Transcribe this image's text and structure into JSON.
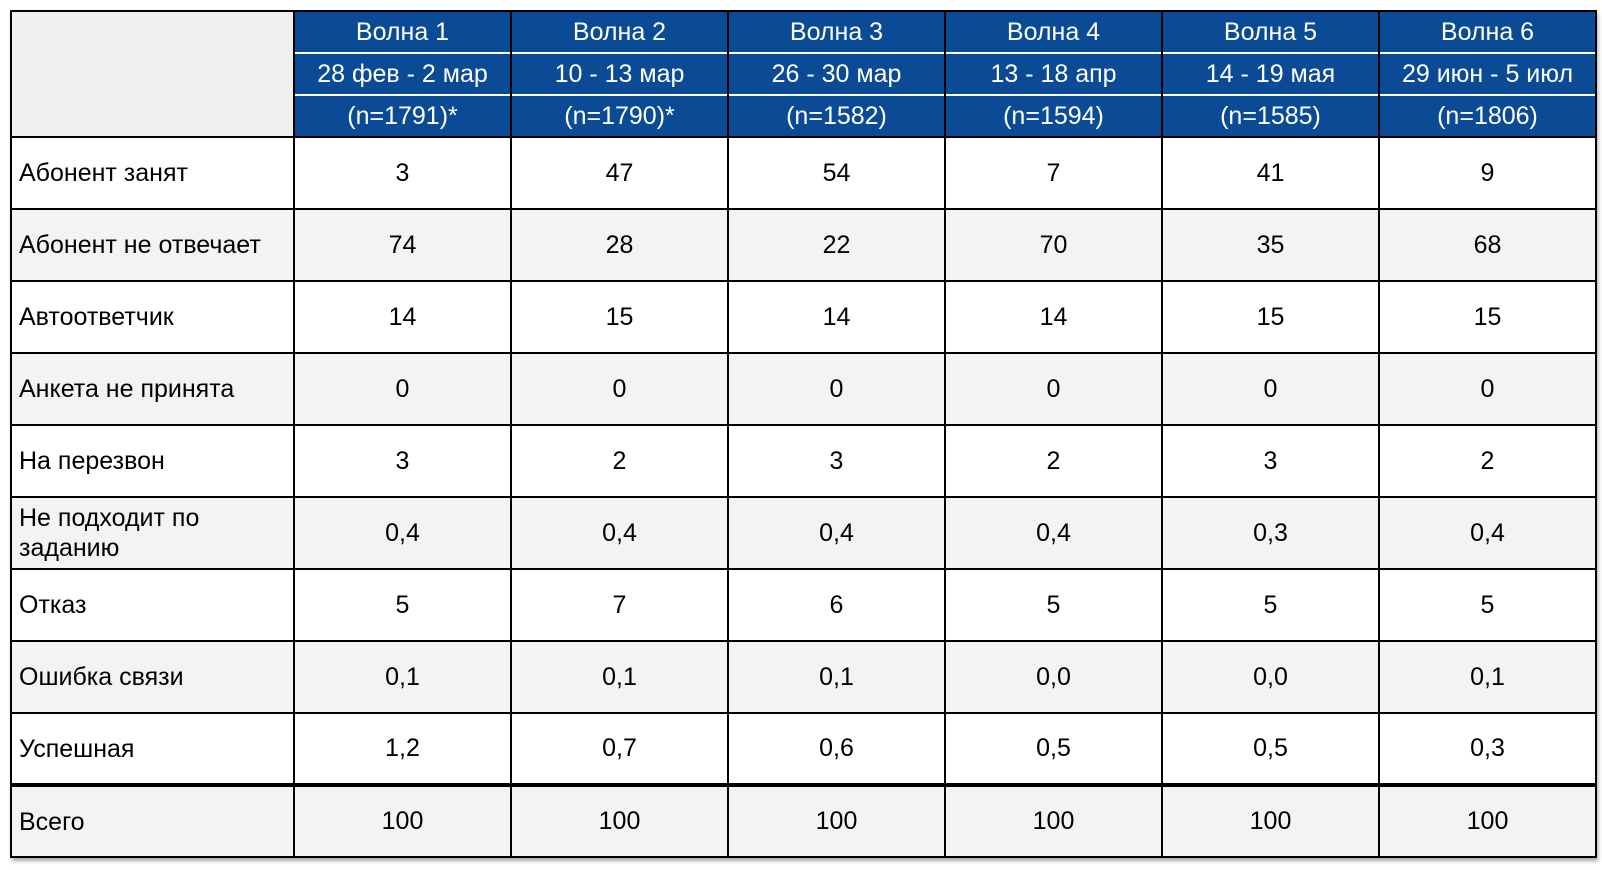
{
  "table": {
    "columns": [
      {
        "wave": "Волна 1",
        "dates": "28 фев - 2 мар",
        "n": "(n=1791)*"
      },
      {
        "wave": "Волна 2",
        "dates": "10 - 13 мар",
        "n": "(n=1790)*"
      },
      {
        "wave": "Волна 3",
        "dates": "26 - 30 мар",
        "n": "(n=1582)"
      },
      {
        "wave": "Волна 4",
        "dates": "13 - 18 апр",
        "n": "(n=1594)"
      },
      {
        "wave": "Волна 5",
        "dates": "14 - 19 мая",
        "n": "(n=1585)"
      },
      {
        "wave": "Волна 6",
        "dates": "29 июн - 5 июл",
        "n": "(n=1806)"
      }
    ],
    "rows": [
      {
        "label": "Абонент занят",
        "values": [
          "3",
          "47",
          "54",
          "7",
          "41",
          "9"
        ]
      },
      {
        "label": "Абонент не отвечает",
        "values": [
          "74",
          "28",
          "22",
          "70",
          "35",
          "68"
        ]
      },
      {
        "label": "Автоответчик",
        "values": [
          "14",
          "15",
          "14",
          "14",
          "15",
          "15"
        ]
      },
      {
        "label": "Анкета не принята",
        "values": [
          "0",
          "0",
          "0",
          "0",
          "0",
          "0"
        ]
      },
      {
        "label": "На перезвон",
        "values": [
          "3",
          "2",
          "3",
          "2",
          "3",
          "2"
        ]
      },
      {
        "label": "Не подходит по заданию",
        "values": [
          "0,4",
          "0,4",
          "0,4",
          "0,4",
          "0,3",
          "0,4"
        ]
      },
      {
        "label": "Отказ",
        "values": [
          "5",
          "7",
          "6",
          "5",
          "5",
          "5"
        ]
      },
      {
        "label": "Ошибка связи",
        "values": [
          "0,1",
          "0,1",
          "0,1",
          "0,0",
          "0,0",
          "0,1"
        ]
      },
      {
        "label": "Успешная",
        "values": [
          "1,2",
          "0,7",
          "0,6",
          "0,5",
          "0,5",
          "0,3"
        ]
      }
    ],
    "total": {
      "label": "Всего",
      "values": [
        "100",
        "100",
        "100",
        "100",
        "100",
        "100"
      ]
    }
  },
  "colors": {
    "header_bg": "#0b4b96",
    "header_text": "#ffffff",
    "alt_row_bg": "#f3f3f3"
  }
}
